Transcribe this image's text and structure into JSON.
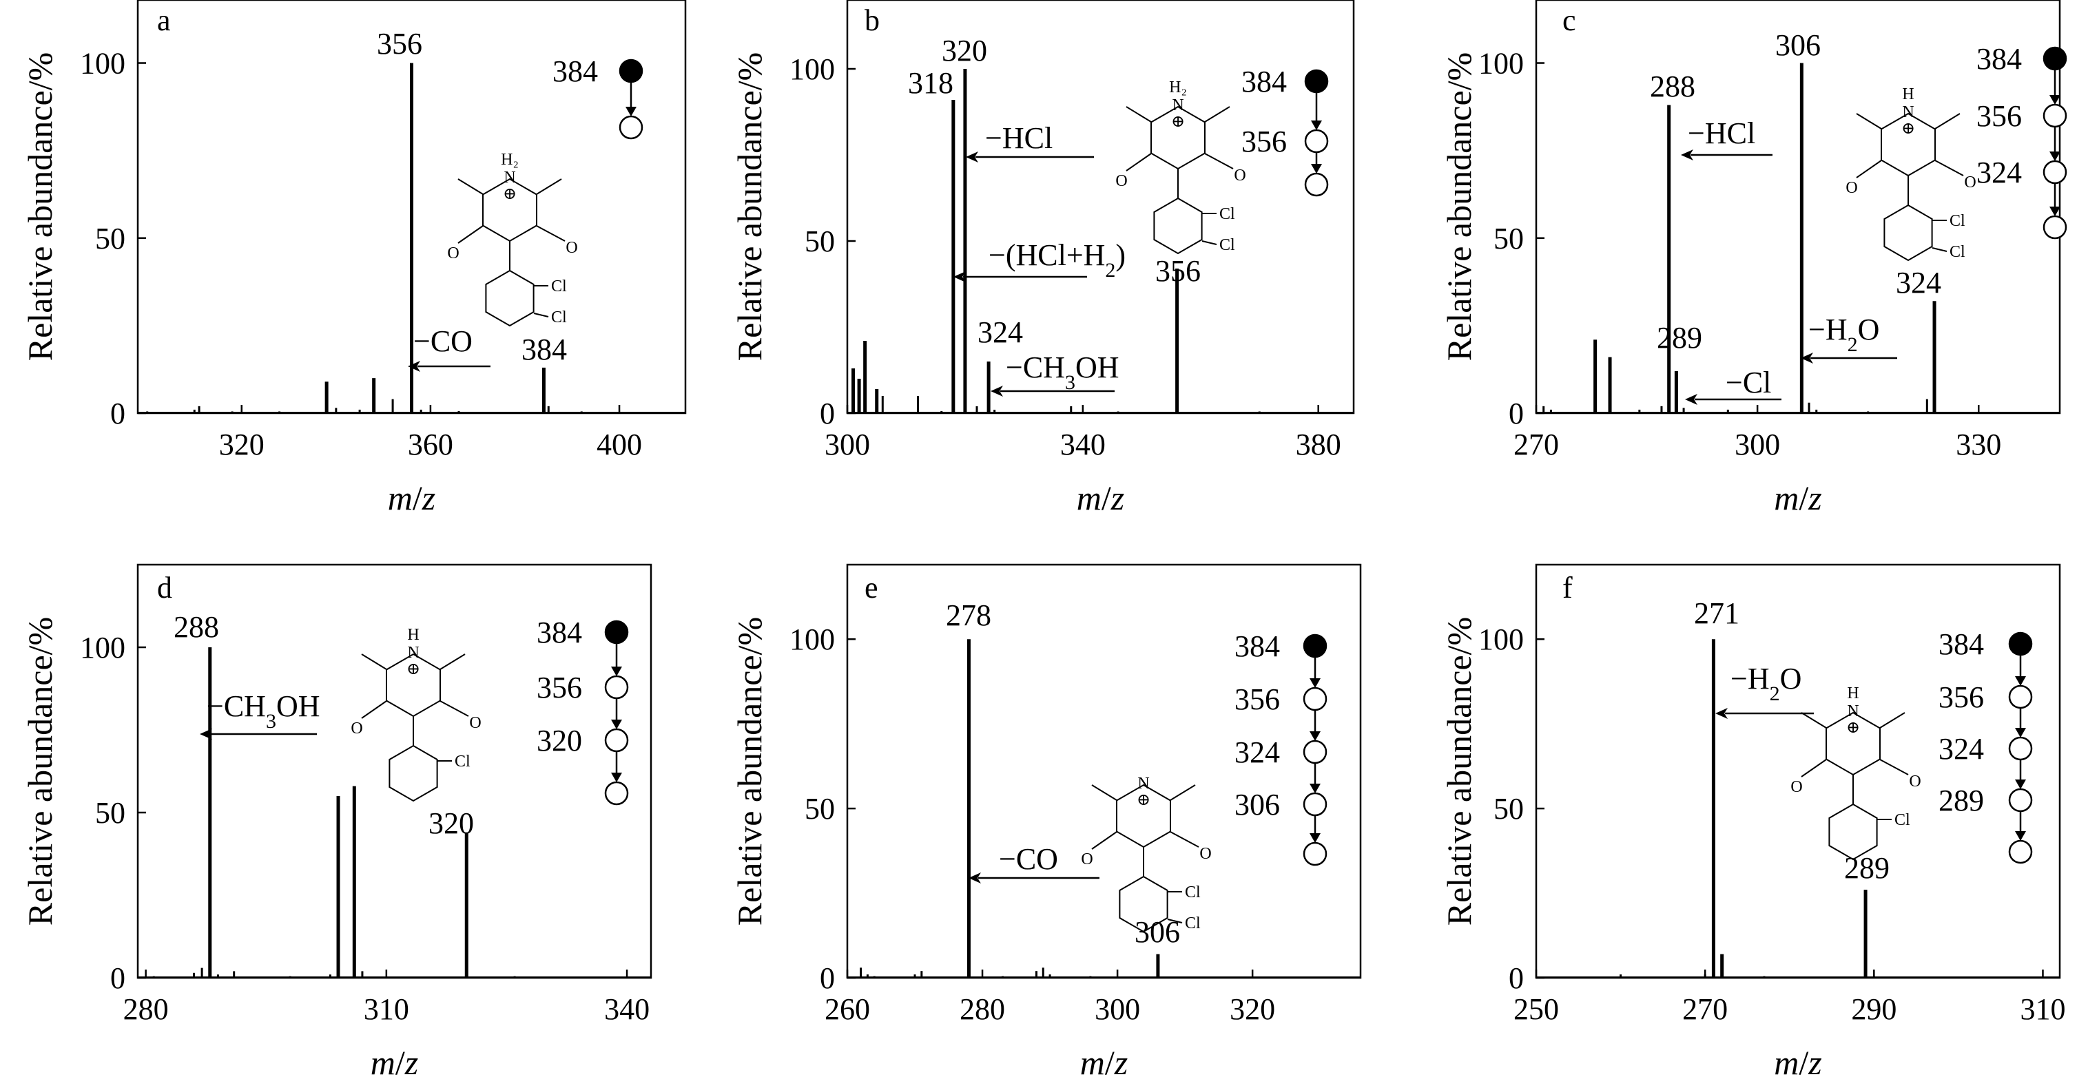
{
  "chart_data": [
    {
      "panel": "a",
      "type": "bar",
      "xlabel": "m/z",
      "ylabel": "Relative abundance/%",
      "xlim": [
        298,
        414
      ],
      "ylim": [
        0,
        118
      ],
      "xticks": [
        "320",
        "360",
        "400"
      ],
      "yticks": [
        "0",
        "50",
        "100"
      ],
      "peaks": [
        {
          "x": 356,
          "y": 100,
          "label": "356"
        },
        {
          "x": 384,
          "y": 13,
          "label": "384"
        },
        {
          "x": 338,
          "y": 9
        },
        {
          "x": 348,
          "y": 10
        },
        {
          "x": 352,
          "y": 4
        },
        {
          "x": 340,
          "y": 1.5
        },
        {
          "x": 311,
          "y": 2
        },
        {
          "x": 310,
          "y": 1
        },
        {
          "x": 345,
          "y": 1
        },
        {
          "x": 358,
          "y": 1
        },
        {
          "x": 385,
          "y": 2
        },
        {
          "x": 366,
          "y": 0.6
        },
        {
          "x": 318,
          "y": 0.5
        },
        {
          "x": 328,
          "y": 0.5
        },
        {
          "x": 300,
          "y": 0.5
        },
        {
          "x": 392,
          "y": 0.5
        }
      ],
      "annotations": [
        {
          "text": "−CO"
        }
      ],
      "chain": [
        "384"
      ],
      "chain_empty_after": true,
      "structure": {
        "h_label": "H₂",
        "charge": "⊕",
        "cl": [
          "Cl",
          "Cl"
        ]
      }
    },
    {
      "panel": "b",
      "type": "bar",
      "xlabel": "m/z",
      "ylabel": "Relative abundance/%",
      "xlim": [
        300,
        386
      ],
      "ylim": [
        0,
        120
      ],
      "xticks": [
        "300",
        "340",
        "380"
      ],
      "yticks": [
        "0",
        "50",
        "100"
      ],
      "peaks": [
        {
          "x": 318,
          "y": 91,
          "label": "318"
        },
        {
          "x": 320,
          "y": 100,
          "label": "320"
        },
        {
          "x": 324,
          "y": 15,
          "label": "324"
        },
        {
          "x": 356,
          "y": 42,
          "label": "356"
        },
        {
          "x": 303,
          "y": 21
        },
        {
          "x": 301,
          "y": 13
        },
        {
          "x": 302,
          "y": 10
        },
        {
          "x": 305,
          "y": 7
        },
        {
          "x": 306,
          "y": 5
        },
        {
          "x": 312,
          "y": 5
        },
        {
          "x": 322,
          "y": 2
        },
        {
          "x": 338,
          "y": 2
        },
        {
          "x": 325,
          "y": 1
        },
        {
          "x": 316,
          "y": 0.6
        },
        {
          "x": 346,
          "y": 0.5
        },
        {
          "x": 370,
          "y": 0.5
        }
      ],
      "annotations": [
        {
          "text": "−HCl"
        },
        {
          "text": "−(HCl+H₂)"
        },
        {
          "text": "−CH₃OH"
        }
      ],
      "chain": [
        "384",
        "356"
      ],
      "chain_empty_after": true,
      "structure": {
        "h_label": "H₂",
        "charge": "⊕",
        "cl": [
          "Cl",
          "Cl"
        ]
      }
    },
    {
      "panel": "c",
      "type": "bar",
      "xlabel": "m/z",
      "ylabel": "Relative abundance/%",
      "xlim": [
        270,
        341
      ],
      "ylim": [
        0,
        118
      ],
      "xticks": [
        "270",
        "300",
        "330"
      ],
      "yticks": [
        "0",
        "50",
        "100"
      ],
      "peaks": [
        {
          "x": 288,
          "y": 88,
          "label": "288"
        },
        {
          "x": 306,
          "y": 100,
          "label": "306"
        },
        {
          "x": 289,
          "y": 12,
          "label": "289"
        },
        {
          "x": 324,
          "y": 32,
          "label": "324"
        },
        {
          "x": 278,
          "y": 21
        },
        {
          "x": 280,
          "y": 16
        },
        {
          "x": 323,
          "y": 4
        },
        {
          "x": 307,
          "y": 3
        },
        {
          "x": 287,
          "y": 2
        },
        {
          "x": 271,
          "y": 2
        },
        {
          "x": 272,
          "y": 1
        },
        {
          "x": 290,
          "y": 1.5
        },
        {
          "x": 296,
          "y": 1
        },
        {
          "x": 308,
          "y": 1
        },
        {
          "x": 284,
          "y": 1
        },
        {
          "x": 315,
          "y": 0.5
        }
      ],
      "annotations": [
        {
          "text": "−HCl"
        },
        {
          "text": "−H₂O"
        },
        {
          "text": "−Cl"
        }
      ],
      "chain": [
        "384",
        "356",
        "324"
      ],
      "chain_empty_after": true,
      "structure": {
        "h_label": "H",
        "charge": "⊕",
        "cl": [
          "Cl",
          "Cl"
        ]
      }
    },
    {
      "panel": "d",
      "type": "bar",
      "xlabel": "m/z",
      "ylabel": "Relative abundance/%",
      "xlim": [
        279,
        343
      ],
      "ylim": [
        0,
        125
      ],
      "xticks": [
        "280",
        "310",
        "340"
      ],
      "yticks": [
        "0",
        "50",
        "100"
      ],
      "peaks": [
        {
          "x": 288,
          "y": 100,
          "label": "288"
        },
        {
          "x": 304,
          "y": 55
        },
        {
          "x": 306,
          "y": 58
        },
        {
          "x": 320,
          "y": 44,
          "label": "320"
        },
        {
          "x": 287,
          "y": 3
        },
        {
          "x": 286,
          "y": 1.5
        },
        {
          "x": 291,
          "y": 2
        },
        {
          "x": 303,
          "y": 1
        },
        {
          "x": 307,
          "y": 2
        },
        {
          "x": 289,
          "y": 1
        },
        {
          "x": 281,
          "y": 0.5
        },
        {
          "x": 298,
          "y": 0.5
        },
        {
          "x": 326,
          "y": 0.5
        }
      ],
      "annotations": [
        {
          "text": "−CH₃OH"
        }
      ],
      "chain": [
        "384",
        "356",
        "320"
      ],
      "chain_empty_after": true,
      "structure": {
        "h_label": "H",
        "charge": "⊕",
        "cl": [
          "Cl"
        ]
      }
    },
    {
      "panel": "e",
      "type": "bar",
      "xlabel": "m/z",
      "ylabel": "Relative abundance/%",
      "xlim": [
        260,
        336
      ],
      "ylim": [
        0,
        122
      ],
      "xticks": [
        "260",
        "280",
        "300",
        "320"
      ],
      "yticks": [
        "0",
        "50",
        "100"
      ],
      "peaks": [
        {
          "x": 278,
          "y": 100,
          "label": "278"
        },
        {
          "x": 306,
          "y": 7,
          "label": "306"
        },
        {
          "x": 262,
          "y": 3
        },
        {
          "x": 263,
          "y": 1
        },
        {
          "x": 271,
          "y": 2
        },
        {
          "x": 270,
          "y": 1
        },
        {
          "x": 289,
          "y": 3
        },
        {
          "x": 288,
          "y": 2
        },
        {
          "x": 290,
          "y": 1
        },
        {
          "x": 264,
          "y": 0.5
        },
        {
          "x": 283,
          "y": 0.5
        },
        {
          "x": 296,
          "y": 0.5
        }
      ],
      "annotations": [
        {
          "text": "−CO"
        }
      ],
      "chain": [
        "384",
        "356",
        "324",
        "306"
      ],
      "chain_empty_after": true,
      "structure": {
        "h_label": "",
        "charge": "⊕",
        "cl": [
          "Cl",
          "Cl"
        ]
      }
    },
    {
      "panel": "f",
      "type": "bar",
      "xlabel": "m/z",
      "ylabel": "Relative abundance/%",
      "xlim": [
        250,
        312
      ],
      "ylim": [
        0,
        122
      ],
      "xticks": [
        "250",
        "270",
        "290",
        "310"
      ],
      "yticks": [
        "0",
        "50",
        "100"
      ],
      "peaks": [
        {
          "x": 271,
          "y": 100,
          "label": "271"
        },
        {
          "x": 289,
          "y": 26,
          "label": "289"
        },
        {
          "x": 272,
          "y": 7
        },
        {
          "x": 270,
          "y": 1
        },
        {
          "x": 260,
          "y": 1
        },
        {
          "x": 277,
          "y": 0.5
        },
        {
          "x": 290,
          "y": 0.5
        },
        {
          "x": 300,
          "y": 0.3
        }
      ],
      "annotations": [
        {
          "text": "−H₂O"
        }
      ],
      "chain": [
        "384",
        "356",
        "324",
        "289"
      ],
      "chain_empty_after": true,
      "structure": {
        "h_label": "H",
        "charge": "⊕",
        "cl": [
          "Cl"
        ]
      }
    }
  ]
}
